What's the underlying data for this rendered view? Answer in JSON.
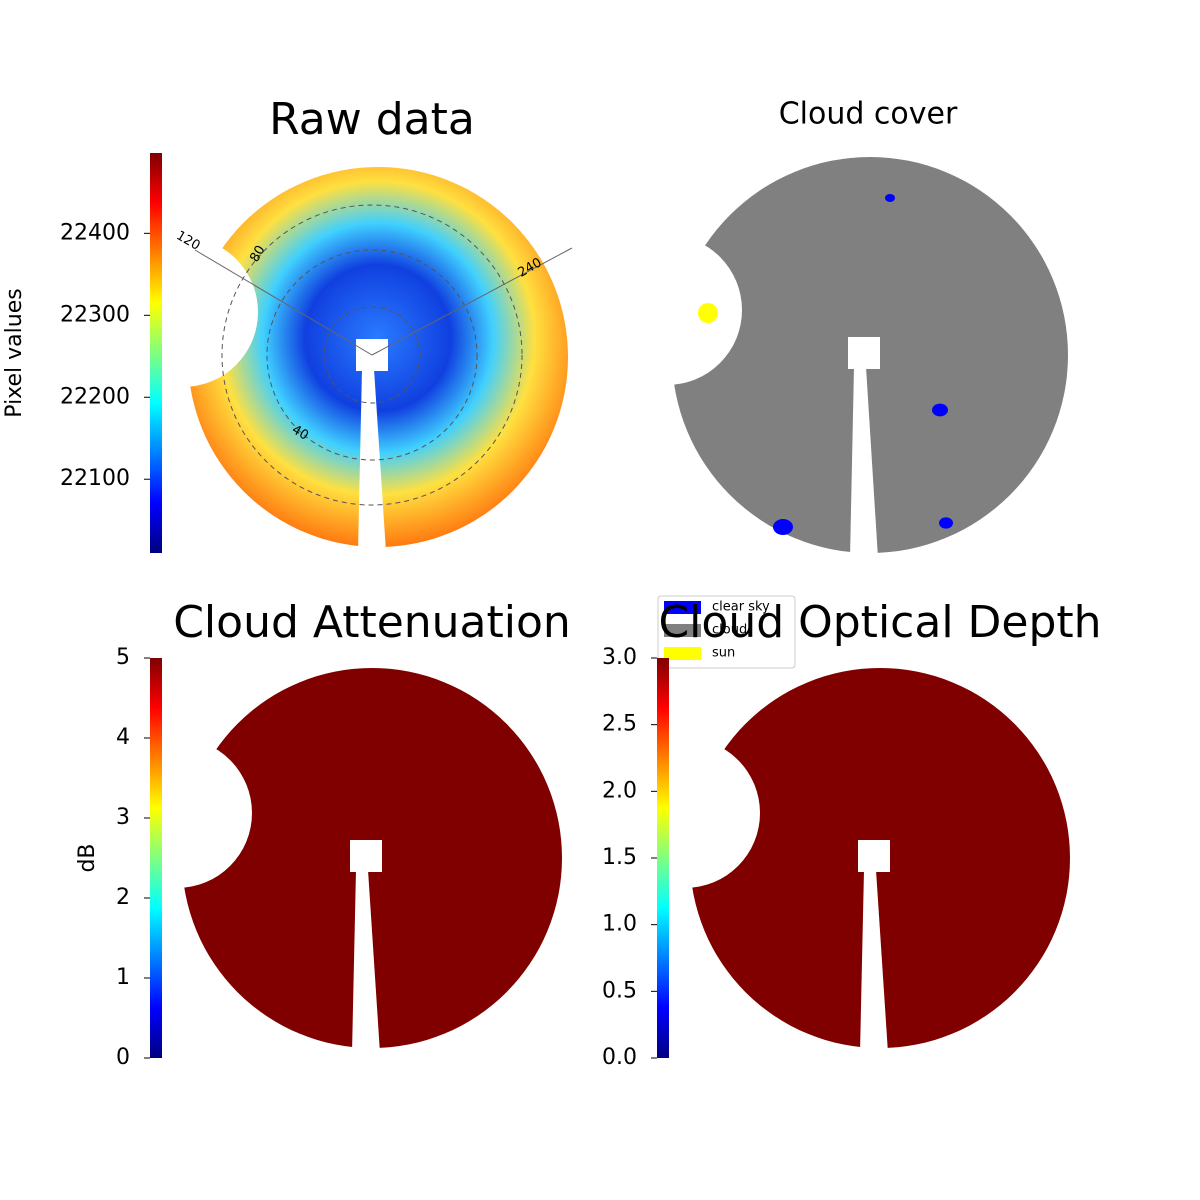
{
  "chart_data": [
    {
      "type": "image",
      "title": "Raw data",
      "colormap": "jet",
      "colorbar": {
        "label": "Pixel values",
        "lim": [
          22010,
          22498
        ],
        "ticks": [
          22100,
          22200,
          22300,
          22400
        ]
      },
      "annotations": [
        "120",
        "80",
        "240",
        "40"
      ]
    },
    {
      "type": "image",
      "title": "Cloud cover",
      "color": "#808080",
      "legend": [
        {
          "name": "clear sky",
          "color": "#0000ff"
        },
        {
          "name": "cloud",
          "color": "#808080"
        },
        {
          "name": "sun",
          "color": "#ffff00"
        }
      ]
    },
    {
      "type": "image",
      "title": "Cloud Attenuation",
      "colormap": "jet",
      "color": "#800000",
      "colorbar": {
        "label": "dB",
        "lim": [
          0,
          5
        ],
        "ticks": [
          0,
          1,
          2,
          3,
          4,
          5
        ]
      }
    },
    {
      "type": "image",
      "title": "Cloud Optical Depth",
      "colormap": "jet",
      "color": "#800000",
      "colorbar": {
        "lim": [
          0,
          3
        ],
        "ticks": [
          {
            "value": 0,
            "label": "0.0"
          },
          0.5,
          {
            "value": 1,
            "label": "1.0"
          },
          1.5,
          {
            "value": 2,
            "label": "2.0"
          },
          2.5,
          {
            "value": 3,
            "label": "3.0"
          }
        ]
      }
    }
  ]
}
